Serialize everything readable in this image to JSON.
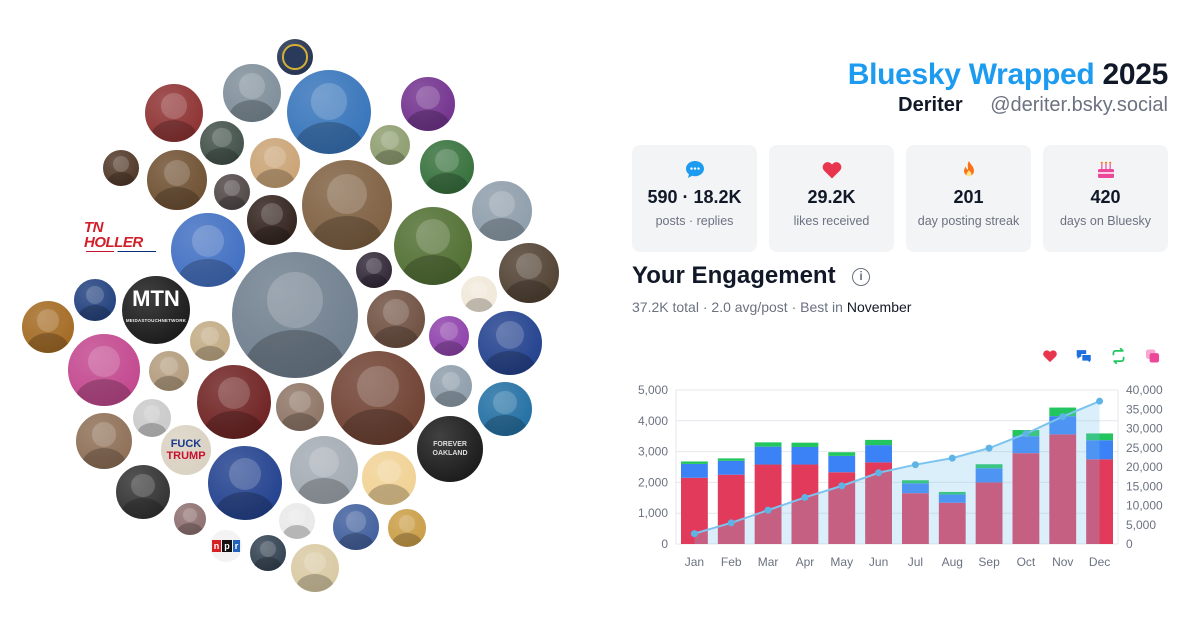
{
  "header": {
    "title_brand": "Bluesky Wrapped",
    "title_year": "2025",
    "display_name": "Deriter",
    "handle": "@deriter.bsky.social"
  },
  "stats": [
    {
      "value": "590 · 18.2K",
      "label": "posts · replies",
      "icon": "speech-bubble-icon",
      "color": "#1d9bf0"
    },
    {
      "value": "29.2K",
      "label": "likes received",
      "icon": "heart-icon",
      "color": "#e8364f"
    },
    {
      "value": "201",
      "label": "day posting streak",
      "icon": "flame-icon",
      "color": "#f97316"
    },
    {
      "value": "420",
      "label": "days on Bluesky",
      "icon": "cake-icon",
      "color": "#ec4899"
    }
  ],
  "engagement": {
    "title": "Your Engagement",
    "total": "37.2K",
    "total_word": "total",
    "avg": "2.0 avg/post",
    "best_prefix": "Best in",
    "best_month": "November",
    "legend": [
      {
        "icon": "heart-icon",
        "color": "#e8364f"
      },
      {
        "icon": "replies-icon",
        "color": "#1d6fe0"
      },
      {
        "icon": "repost-icon",
        "color": "#22c55e"
      },
      {
        "icon": "quote-icon",
        "color": "#ec4899"
      }
    ]
  },
  "avatar_labels": {
    "tn_holler": "TN HOLLER",
    "mtn": "MTN",
    "mtn_sub": "MEIDASTOUCHNETWORK",
    "npr": "npr",
    "fuck": "FUCK",
    "trump": "TRUMP",
    "forever": "FOREVER",
    "oakland": "OAKLAND"
  },
  "chart_data": {
    "type": "bar",
    "categories": [
      "Jan",
      "Feb",
      "Mar",
      "Apr",
      "May",
      "Jun",
      "Jul",
      "Aug",
      "Sep",
      "Oct",
      "Nov",
      "Dec"
    ],
    "series": [
      {
        "values": [
          2150,
          2250,
          2580,
          2580,
          2330,
          2650,
          1650,
          1340,
          2000,
          2950,
          3560,
          2750
        ],
        "color": "#e23a5b"
      },
      {
        "values": [
          450,
          450,
          580,
          570,
          530,
          560,
          320,
          270,
          460,
          550,
          590,
          620
        ],
        "color": "#3b82f6"
      },
      {
        "values": [
          80,
          80,
          140,
          140,
          120,
          170,
          100,
          80,
          130,
          200,
          280,
          220
        ],
        "color": "#22c55e"
      }
    ],
    "cumulative": [
      2700,
      5500,
      8800,
      12100,
      15100,
      18500,
      20600,
      22300,
      24900,
      28650,
      33100,
      37100
    ],
    "ylim": [
      0,
      5000
    ],
    "yticks": [
      0,
      1000,
      2000,
      3000,
      4000,
      5000
    ],
    "ytick_labels": [
      "0",
      "1,000",
      "2,000",
      "3,000",
      "4,000",
      "5,000"
    ],
    "y2lim": [
      0,
      40000
    ],
    "y2ticks": [
      0,
      5000,
      10000,
      15000,
      20000,
      25000,
      30000,
      35000,
      40000
    ],
    "y2tick_labels": [
      "0",
      "5,000",
      "10,000",
      "15,000",
      "20,000",
      "25,000",
      "30,000",
      "35,000",
      "40,000"
    ],
    "stacked": true,
    "grid": true,
    "line_color": "#7cc4ee"
  }
}
